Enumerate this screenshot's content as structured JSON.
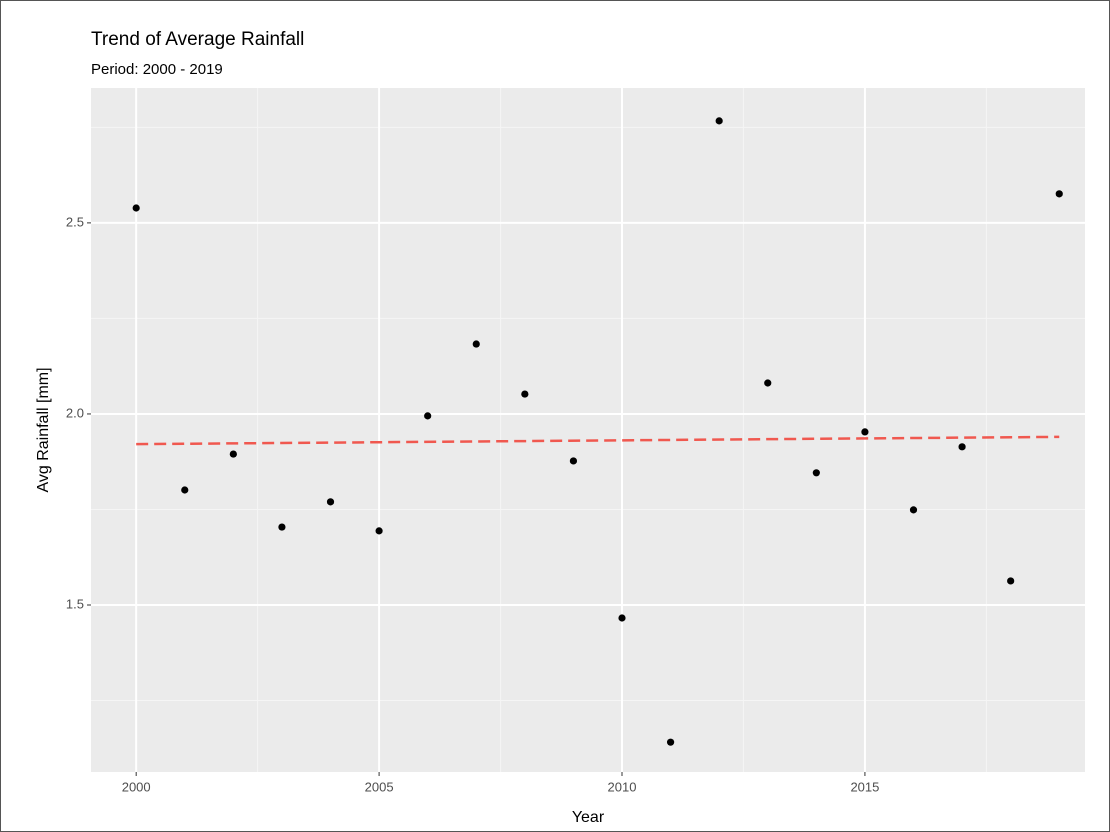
{
  "chart_data": {
    "type": "scatter",
    "title": "Trend of Average Rainfall",
    "subtitle": "Period: 2000 - 2019",
    "x_label": "Year",
    "y_label": "Avg Rainfall [mm]",
    "x": [
      2000,
      2001,
      2002,
      2003,
      2004,
      2005,
      2006,
      2007,
      2008,
      2009,
      2010,
      2011,
      2012,
      2013,
      2014,
      2015,
      2016,
      2017,
      2018,
      2019
    ],
    "values": [
      2.539,
      1.801,
      1.895,
      1.704,
      1.77,
      1.694,
      1.995,
      2.183,
      2.052,
      1.877,
      1.466,
      1.141,
      2.767,
      2.081,
      1.846,
      1.953,
      1.749,
      1.914,
      1.563,
      2.576
    ],
    "color": "#000000",
    "trend_line": {
      "x": [
        2000,
        2019
      ],
      "values": [
        1.921,
        1.94
      ],
      "color": "#f0584f",
      "dashed": true
    },
    "xlim": [
      1999.07,
      2019.53
    ],
    "ylim": [
      1.063,
      2.853
    ],
    "xticks": [
      2000,
      2005,
      2010,
      2015
    ],
    "yticks": [
      1.5,
      {
        "value": 2,
        "label": "2.0"
      },
      2.5
    ],
    "minor_xticks": [
      2002.5,
      2007.5,
      2012.5,
      2017.5
    ],
    "minor_yticks": [
      1.25,
      1.75,
      2.25,
      2.75
    ],
    "grid": true
  }
}
